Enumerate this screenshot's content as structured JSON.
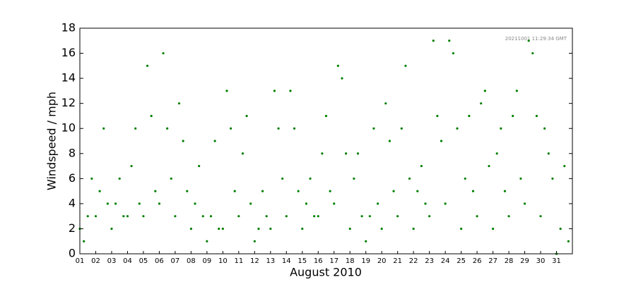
{
  "chart_data": {
    "type": "scatter",
    "ylabel": "Windspeed / mph",
    "xlabel": "August 2010",
    "annotation": "20211001 11:29:34 GMT",
    "xlim": [
      1,
      32
    ],
    "ylim": [
      0,
      18
    ],
    "yticks": [
      0,
      2,
      4,
      6,
      8,
      10,
      12,
      14,
      16,
      18
    ],
    "xticks": [
      {
        "value": 1,
        "label": "01"
      },
      {
        "value": 2,
        "label": "02"
      },
      {
        "value": 3,
        "label": "03"
      },
      {
        "value": 4,
        "label": "04"
      },
      {
        "value": 5,
        "label": "05"
      },
      {
        "value": 6,
        "label": "06"
      },
      {
        "value": 7,
        "label": "07"
      },
      {
        "value": 8,
        "label": "08"
      },
      {
        "value": 9,
        "label": "09"
      },
      {
        "value": 10,
        "label": "10"
      },
      {
        "value": 11,
        "label": "11"
      },
      {
        "value": 12,
        "label": "12"
      },
      {
        "value": 13,
        "label": "13"
      },
      {
        "value": 14,
        "label": "14"
      },
      {
        "value": 15,
        "label": "15"
      },
      {
        "value": 16,
        "label": "16"
      },
      {
        "value": 17,
        "label": "17"
      },
      {
        "value": 18,
        "label": "18"
      },
      {
        "value": 19,
        "label": "19"
      },
      {
        "value": 20,
        "label": "20"
      },
      {
        "value": 21,
        "label": "21"
      },
      {
        "value": 22,
        "label": "22"
      },
      {
        "value": 23,
        "label": "23"
      },
      {
        "value": 24,
        "label": "24"
      },
      {
        "value": 25,
        "label": "25"
      },
      {
        "value": 26,
        "label": "26"
      },
      {
        "value": 27,
        "label": "27"
      },
      {
        "value": 28,
        "label": "28"
      },
      {
        "value": 29,
        "label": "29"
      },
      {
        "value": 30,
        "label": "30"
      },
      {
        "value": 31,
        "label": "31"
      }
    ],
    "color": "#008000",
    "x": [
      1,
      1.25,
      1.5,
      1.75,
      2,
      2.25,
      2.5,
      2.75,
      3,
      3.25,
      3.5,
      3.75,
      4,
      4.25,
      4.5,
      4.75,
      5,
      5.25,
      5.5,
      5.75,
      6,
      6.25,
      6.5,
      6.75,
      7,
      7.25,
      7.5,
      7.75,
      8,
      8.25,
      8.5,
      8.75,
      9,
      9.25,
      9.5,
      9.75,
      10,
      10.25,
      10.5,
      10.75,
      11,
      11.25,
      11.5,
      11.75,
      12,
      12.25,
      12.5,
      12.75,
      13,
      13.25,
      13.5,
      13.75,
      14,
      14.25,
      14.5,
      14.75,
      15,
      15.25,
      15.5,
      15.75,
      16,
      16.25,
      16.5,
      16.75,
      17,
      17.25,
      17.5,
      17.75,
      18,
      18.25,
      18.5,
      18.75,
      19,
      19.25,
      19.5,
      19.75,
      20,
      20.25,
      20.5,
      20.75,
      21,
      21.25,
      21.5,
      21.75,
      22,
      22.25,
      22.5,
      22.75,
      23,
      23.25,
      23.5,
      23.75,
      24,
      24.25,
      24.5,
      24.75,
      25,
      25.25,
      25.5,
      25.75,
      26,
      26.25,
      26.5,
      26.75,
      27,
      27.25,
      27.5,
      27.75,
      28,
      28.25,
      28.5,
      28.75,
      29,
      29.25,
      29.5,
      29.75,
      30,
      30.25,
      30.5,
      30.75,
      31,
      31.25,
      31.5,
      31.75
    ],
    "values": [
      2,
      1,
      3,
      6,
      3,
      5,
      10,
      4,
      2,
      4,
      6,
      3,
      3,
      7,
      10,
      4,
      3,
      15,
      11,
      5,
      4,
      16,
      10,
      6,
      3,
      12,
      9,
      5,
      2,
      4,
      7,
      3,
      1,
      3,
      9,
      2,
      2,
      13,
      10,
      5,
      3,
      8,
      11,
      4,
      1,
      2,
      5,
      3,
      2,
      13,
      10,
      6,
      3,
      13,
      10,
      5,
      2,
      4,
      6,
      3,
      3,
      8,
      11,
      5,
      4,
      15,
      14,
      8,
      2,
      6,
      8,
      3,
      1,
      3,
      10,
      4,
      2,
      12,
      9,
      5,
      3,
      10,
      15,
      6,
      2,
      5,
      7,
      4,
      3,
      17,
      11,
      9,
      4,
      17,
      16,
      10,
      2,
      6,
      11,
      5,
      3,
      12,
      13,
      7,
      2,
      8,
      10,
      5,
      3,
      11,
      13,
      6,
      4,
      17,
      16,
      11,
      3,
      10,
      8,
      6,
      0,
      2,
      7,
      1
    ]
  }
}
